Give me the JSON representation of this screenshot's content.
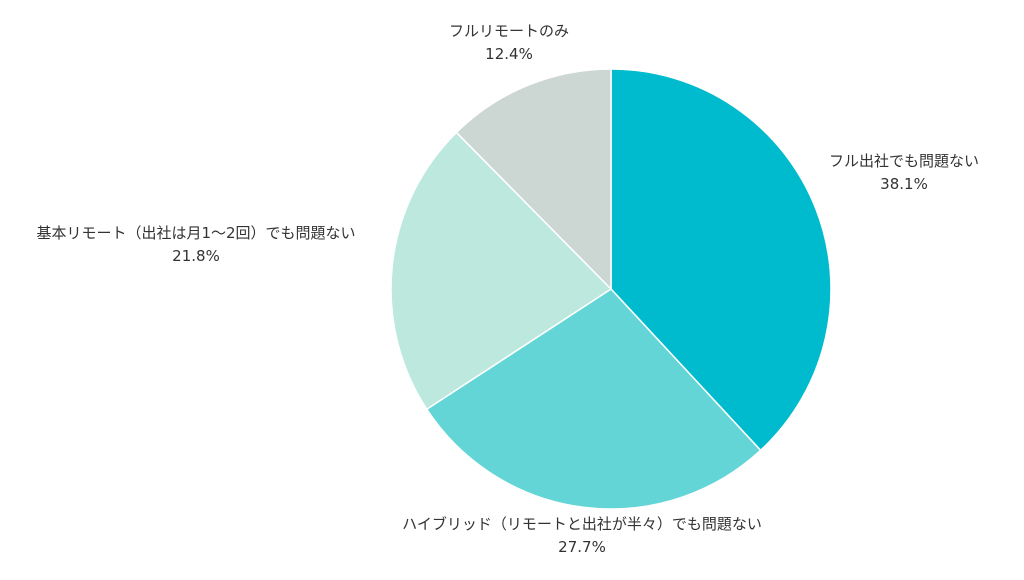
{
  "chart_data": {
    "type": "pie",
    "title": "",
    "start": "12 o'clock",
    "direction": "clockwise",
    "slices": [
      {
        "label": "フル出社でも問題ない",
        "value": 38.1,
        "value_label": "38.1%",
        "color": "#00bacd"
      },
      {
        "label": "ハイブリッド（リモートと出社が半々）でも問題ない",
        "value": 27.7,
        "value_label": "27.7%",
        "color": "#63d5d6"
      },
      {
        "label": "基本リモート（出社は月1〜2回）でも問題ない",
        "value": 21.8,
        "value_label": "21.8%",
        "color": "#bde8de"
      },
      {
        "label": "フルリモートのみ",
        "value": 12.4,
        "value_label": "12.4%",
        "color": "#ccd7d4"
      }
    ]
  }
}
